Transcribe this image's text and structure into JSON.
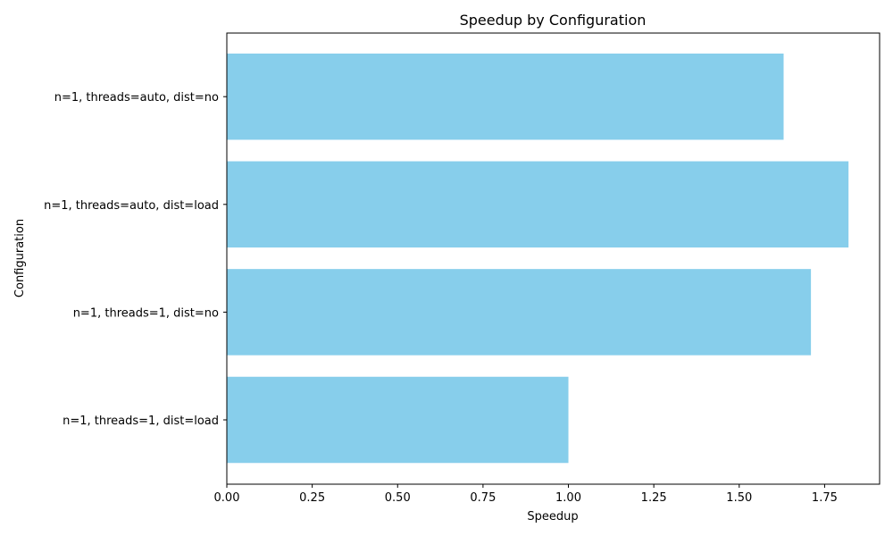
{
  "chart_data": {
    "type": "bar",
    "orientation": "horizontal",
    "title": "Speedup by Configuration",
    "xlabel": "Speedup",
    "ylabel": "Configuration",
    "categories": [
      "n=1, threads=1, dist=load",
      "n=1, threads=1, dist=no",
      "n=1, threads=auto, dist=load",
      "n=1, threads=auto, dist=no"
    ],
    "values": [
      1.0,
      1.71,
      1.82,
      1.63
    ],
    "xlim": [
      0,
      1.911
    ],
    "xticks": [
      "0.00",
      "0.25",
      "0.50",
      "0.75",
      "1.00",
      "1.25",
      "1.50",
      "1.75"
    ],
    "bar_color": "#87ceeb",
    "grid": false,
    "legend": "none"
  }
}
